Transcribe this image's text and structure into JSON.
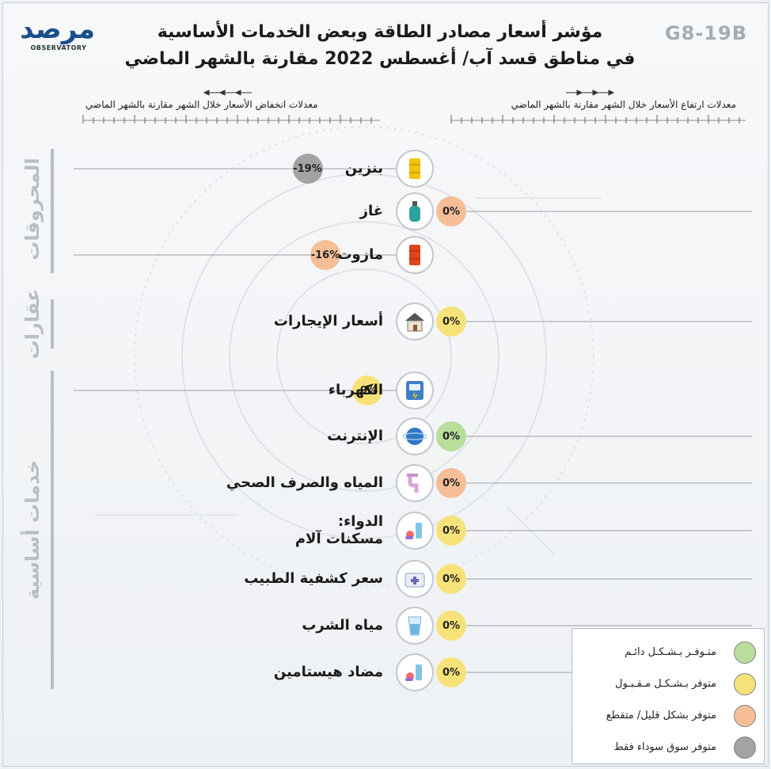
{
  "header": {
    "logo_text": "مرصد",
    "logo_subtext": "OBSERVATORY",
    "code": "G8-19B",
    "title_line1": "مؤشر أسعار مصادر الطاقة وبعض الخدمات الأساسية",
    "title_line2": "في مناطق قسد آب/ أغسطس 2022 مقارنة بالشهر الماضي"
  },
  "directions": {
    "decrease": "معدلات انخفاض الأسعار خلال الشهر مقارنة بالشهر الماضي",
    "increase": "معدلات ارتفاع الأسعار خلال الشهر مقارنة بالشهر الماضي"
  },
  "categories": {
    "fuels": "المحروقات",
    "realestate": "عقارات",
    "services": "خدمات أساسية"
  },
  "colors": {
    "available_always": "#b9dd9a",
    "available_acceptable": "#f7e27a",
    "available_scarce": "#f6be97",
    "black_market": "#a3a3a3"
  },
  "legend": [
    {
      "label": "متـوفـر بـشـكـل دائـم",
      "color": "#b9dd9a"
    },
    {
      "label": "متوفر بـشـكـل مـقـبـول",
      "color": "#f7e27a"
    },
    {
      "label": "متوفر بشكل قليل/ متقطع",
      "color": "#f6be97"
    },
    {
      "label": "متوفر سوق سوداء فقط",
      "color": "#a3a3a3"
    }
  ],
  "chart_data": {
    "type": "bar",
    "title": "مؤشر أسعار مصادر الطاقة وبعض الخدمات الأساسية في مناطق قسد آب/ أغسطس 2022 مقارنة بالشهر الماضي",
    "unit": "%",
    "items": [
      {
        "label": "بنزين",
        "value": -19,
        "value_label": "-19%",
        "availability": "black_market",
        "icon": "fuel-barrel-yellow-icon",
        "category": "fuels"
      },
      {
        "label": "غاز",
        "value": 0,
        "value_label": "0%",
        "availability": "available_scarce",
        "icon": "gas-cylinder-icon",
        "category": "fuels"
      },
      {
        "label": "مازوت",
        "value": -16,
        "value_label": "-16%",
        "availability": "available_scarce",
        "icon": "fuel-barrel-red-icon",
        "category": "fuels"
      },
      {
        "label": "أسعار الإيجارات",
        "value": 0,
        "value_label": "0%",
        "availability": "available_acceptable",
        "icon": "house-icon",
        "category": "realestate"
      },
      {
        "label": "الكهرباء",
        "value": -9,
        "value_label": "-9%",
        "availability": "available_acceptable",
        "icon": "electric-meter-icon",
        "category": "services"
      },
      {
        "label": "الإنترنت",
        "value": 0,
        "value_label": "0%",
        "availability": "available_always",
        "icon": "globe-icon",
        "category": "services"
      },
      {
        "label": "المياه والصرف الصحي",
        "value": 0,
        "value_label": "0%",
        "availability": "available_scarce",
        "icon": "pipe-icon",
        "category": "services"
      },
      {
        "label": "الدواء:\nمسكنات آلام",
        "value": 0,
        "value_label": "0%",
        "availability": "available_acceptable",
        "icon": "medicine-icon",
        "category": "services"
      },
      {
        "label": "سعر كشفية الطبيب",
        "value": 0,
        "value_label": "0%",
        "availability": "available_acceptable",
        "icon": "medical-kit-icon",
        "category": "services"
      },
      {
        "label": "مياه الشرب",
        "value": 0,
        "value_label": "0%",
        "availability": "available_acceptable",
        "icon": "water-glass-icon",
        "category": "services"
      },
      {
        "label": "مضاد هيستامين",
        "value": 0,
        "value_label": "0%",
        "availability": "available_acceptable",
        "icon": "medicine-icon",
        "category": "services"
      }
    ]
  }
}
